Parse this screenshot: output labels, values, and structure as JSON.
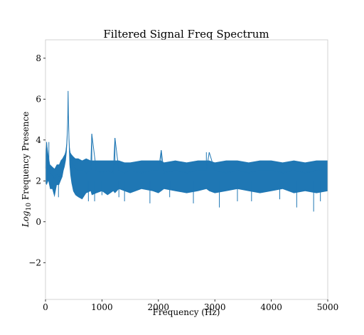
{
  "chart_data": {
    "type": "line",
    "title": "Filtered Signal Freq Spectrum",
    "xlabel": "Frequency (Hz)",
    "ylabel_prefix": "Log",
    "ylabel_sub": "10",
    "ylabel_suffix": " Frequency Presence",
    "xlim": [
      0,
      5000
    ],
    "ylim": [
      -3.8,
      8.9
    ],
    "xticks": [
      0,
      1000,
      2000,
      3000,
      4000,
      5000
    ],
    "xtick_labels": [
      "0",
      "1000",
      "2000",
      "3000",
      "4000",
      "5000"
    ],
    "yticks": [
      -2,
      0,
      2,
      4,
      6,
      8
    ],
    "ytick_labels": [
      "−2",
      "0",
      "2",
      "4",
      "6",
      "8"
    ],
    "grid": false,
    "color": "#1f77b4",
    "series": [
      {
        "x": [
          0,
          20,
          50,
          80,
          120,
          160,
          200,
          240,
          270,
          300,
          320,
          340,
          360,
          375,
          385,
          395,
          400,
          405,
          415,
          425,
          440,
          460,
          490,
          530,
          580,
          650,
          720,
          800,
          820,
          900,
          1000,
          1100,
          1200,
          1230,
          1300,
          1400,
          1500,
          1700,
          1900,
          2000,
          2050,
          2100,
          2300,
          2500,
          2700,
          2850,
          2900,
          3000,
          3200,
          3400,
          3600,
          3800,
          4000,
          4200,
          4400,
          4600,
          4800,
          5000
        ],
        "y": [
          2.6,
          3.9,
          2.7,
          2.4,
          2.3,
          2.1,
          2.3,
          2.2,
          2.5,
          2.7,
          2.9,
          3.1,
          3.4,
          3.8,
          4.3,
          5.2,
          6.4,
          5.3,
          4.1,
          3.6,
          3.3,
          3.1,
          2.8,
          2.6,
          2.5,
          2.5,
          2.4,
          2.5,
          4.3,
          2.5,
          2.4,
          2.5,
          2.4,
          4.1,
          2.5,
          2.4,
          2.5,
          2.4,
          2.5,
          2.5,
          3.5,
          2.4,
          2.5,
          2.4,
          2.5,
          2.5,
          3.4,
          2.5,
          2.4,
          2.5,
          2.4,
          2.5,
          2.5,
          2.4,
          2.5,
          2.4,
          2.5,
          2.6
        ],
        "band_low": [
          1.9,
          1.8,
          2.0,
          1.6,
          1.6,
          1.2,
          1.8,
          1.8,
          2.0,
          2.2,
          2.5,
          2.7,
          3.0,
          3.4,
          3.9,
          4.8,
          6.4,
          4.9,
          3.6,
          2.8,
          2.3,
          1.9,
          1.5,
          1.3,
          1.2,
          1.1,
          1.4,
          1.5,
          1.3,
          1.4,
          1.5,
          1.3,
          1.5,
          1.4,
          1.6,
          1.5,
          1.4,
          1.6,
          1.5,
          1.4,
          1.5,
          1.6,
          1.5,
          1.4,
          1.5,
          1.6,
          1.5,
          1.4,
          1.5,
          1.6,
          1.5,
          1.4,
          1.5,
          1.6,
          1.4,
          1.5,
          1.4,
          1.5
        ],
        "band_high": [
          3.2,
          3.9,
          3.3,
          2.8,
          2.7,
          2.6,
          2.8,
          2.8,
          3.0,
          3.1,
          3.2,
          3.3,
          3.5,
          3.9,
          4.4,
          5.3,
          6.4,
          5.4,
          4.2,
          3.7,
          3.4,
          3.3,
          3.2,
          3.1,
          3.1,
          3.0,
          3.1,
          3.0,
          3.0,
          3.0,
          3.0,
          3.0,
          3.0,
          3.0,
          3.0,
          2.9,
          2.9,
          3.0,
          3.0,
          3.0,
          3.0,
          2.9,
          3.0,
          2.9,
          3.0,
          3.0,
          3.0,
          2.9,
          3.0,
          3.0,
          2.9,
          3.0,
          3.0,
          2.9,
          3.0,
          2.9,
          3.0,
          3.0
        ]
      }
    ],
    "outliers_low": [
      {
        "x": 230,
        "y": 1.2
      },
      {
        "x": 760,
        "y": 1.0
      },
      {
        "x": 870,
        "y": 1.0
      },
      {
        "x": 1000,
        "y": 1.3
      },
      {
        "x": 1300,
        "y": 1.2
      },
      {
        "x": 1400,
        "y": 1.0
      },
      {
        "x": 1850,
        "y": 0.9
      },
      {
        "x": 2200,
        "y": 1.2
      },
      {
        "x": 2620,
        "y": 0.9
      },
      {
        "x": 3080,
        "y": 0.7
      },
      {
        "x": 3400,
        "y": 1.0
      },
      {
        "x": 3650,
        "y": 1.0
      },
      {
        "x": 4150,
        "y": 1.1
      },
      {
        "x": 4450,
        "y": 0.7
      },
      {
        "x": 4750,
        "y": 0.5
      },
      {
        "x": 4870,
        "y": 1.0
      }
    ],
    "outliers_high": [
      {
        "x": 820,
        "y": 4.3
      },
      {
        "x": 1230,
        "y": 4.1
      },
      {
        "x": 2050,
        "y": 3.5
      },
      {
        "x": 2850,
        "y": 3.4
      },
      {
        "x": 60,
        "y": 3.9
      }
    ]
  }
}
